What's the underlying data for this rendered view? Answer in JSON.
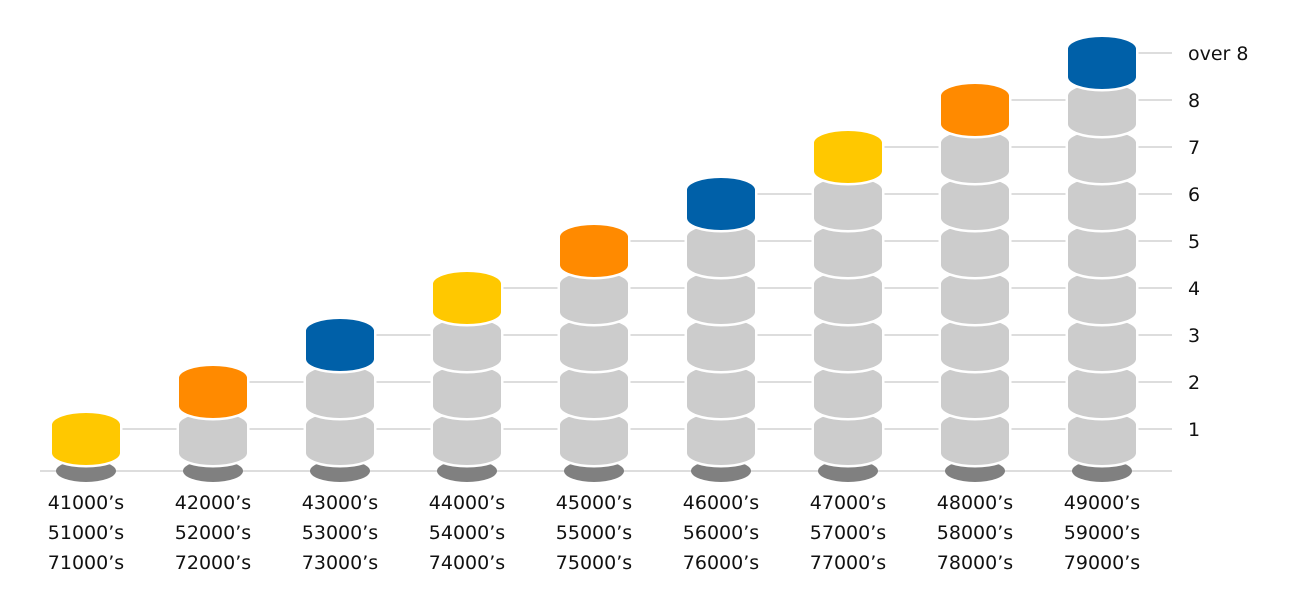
{
  "chart_data": {
    "type": "bar",
    "title": "",
    "xlabel": "",
    "ylabel": "",
    "categories": [
      [
        "41000’s",
        "51000’s",
        "71000’s"
      ],
      [
        "42000’s",
        "52000’s",
        "72000’s"
      ],
      [
        "43000’s",
        "53000’s",
        "73000’s"
      ],
      [
        "44000’s",
        "54000’s",
        "74000’s"
      ],
      [
        "45000’s",
        "55000’s",
        "75000’s"
      ],
      [
        "46000’s",
        "56000’s",
        "76000’s"
      ],
      [
        "47000’s",
        "57000’s",
        "77000’s"
      ],
      [
        "48000’s",
        "58000’s",
        "78000’s"
      ],
      [
        "49000’s",
        "59000’s",
        "79000’s"
      ]
    ],
    "values": [
      1,
      2,
      3,
      4,
      5,
      6,
      7,
      8,
      9
    ],
    "y_tick_labels": [
      "1",
      "2",
      "3",
      "4",
      "5",
      "6",
      "7",
      "8",
      "over 8"
    ],
    "ylim": [
      0,
      9
    ],
    "grid": true,
    "colors": {
      "top_cycle": [
        "#FFC800",
        "#FF8A00",
        "#0060A8"
      ],
      "segment": "#CCCCCC",
      "base": "#808080",
      "grid": "#BBBBBB"
    }
  }
}
